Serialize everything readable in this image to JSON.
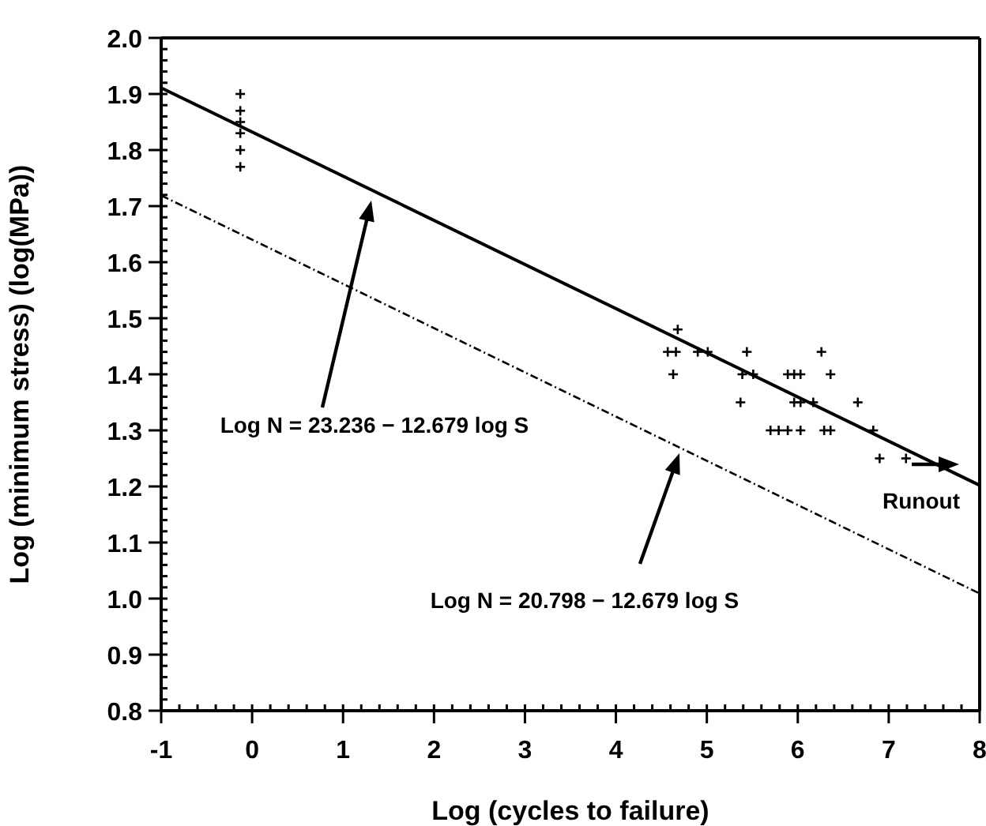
{
  "chart_data": {
    "type": "scatter",
    "xlabel": "Log (cycles to failure)",
    "ylabel": "Log (minimum stress) (log(MPa))",
    "xlim": [
      -1,
      8
    ],
    "ylim": [
      0.8,
      2.0
    ],
    "xticks": [
      -1,
      {
        "value": -0.8,
        "label": null
      },
      {
        "value": -0.6,
        "label": null
      },
      {
        "value": -0.4,
        "label": null
      },
      {
        "value": -0.2,
        "label": null
      },
      0,
      {
        "value": 0.2,
        "label": null
      },
      {
        "value": 0.4,
        "label": null
      },
      {
        "value": 0.6,
        "label": null
      },
      {
        "value": 0.8,
        "label": null
      },
      1,
      {
        "value": 1.2,
        "label": null
      },
      {
        "value": 1.4,
        "label": null
      },
      {
        "value": 1.6,
        "label": null
      },
      {
        "value": 1.8,
        "label": null
      },
      2,
      {
        "value": 2.2,
        "label": null
      },
      {
        "value": 2.4,
        "label": null
      },
      {
        "value": 2.6,
        "label": null
      },
      {
        "value": 2.8,
        "label": null
      },
      3,
      {
        "value": 3.2,
        "label": null
      },
      {
        "value": 3.4,
        "label": null
      },
      {
        "value": 3.6,
        "label": null
      },
      {
        "value": 3.8,
        "label": null
      },
      4,
      {
        "value": 4.2,
        "label": null
      },
      {
        "value": 4.4,
        "label": null
      },
      {
        "value": 4.6,
        "label": null
      },
      {
        "value": 4.8,
        "label": null
      },
      5,
      {
        "value": 5.2,
        "label": null
      },
      {
        "value": 5.4,
        "label": null
      },
      {
        "value": 5.6,
        "label": null
      },
      {
        "value": 5.8,
        "label": null
      },
      6,
      {
        "value": 6.2,
        "label": null
      },
      {
        "value": 6.4,
        "label": null
      },
      {
        "value": 6.6,
        "label": null
      },
      {
        "value": 6.8,
        "label": null
      },
      7,
      {
        "value": 7.2,
        "label": null
      },
      {
        "value": 7.4,
        "label": null
      },
      {
        "value": 7.6,
        "label": null
      },
      {
        "value": 7.8,
        "label": null
      },
      8
    ],
    "yticks": [
      {
        "value": 0.8,
        "label": "0.8"
      },
      {
        "value": 0.82,
        "label": null
      },
      {
        "value": 0.84,
        "label": null
      },
      {
        "value": 0.86,
        "label": null
      },
      {
        "value": 0.88,
        "label": null
      },
      {
        "value": 0.9,
        "label": "0.9"
      },
      {
        "value": 0.92,
        "label": null
      },
      {
        "value": 0.94,
        "label": null
      },
      {
        "value": 0.96,
        "label": null
      },
      {
        "value": 0.98,
        "label": null
      },
      {
        "value": 1.0,
        "label": "1.0"
      },
      {
        "value": 1.02,
        "label": null
      },
      {
        "value": 1.04,
        "label": null
      },
      {
        "value": 1.06,
        "label": null
      },
      {
        "value": 1.08,
        "label": null
      },
      1.1,
      {
        "value": 1.12,
        "label": null
      },
      {
        "value": 1.14,
        "label": null
      },
      {
        "value": 1.16,
        "label": null
      },
      {
        "value": 1.18,
        "label": null
      },
      1.2,
      {
        "value": 1.22,
        "label": null
      },
      {
        "value": 1.24,
        "label": null
      },
      {
        "value": 1.26,
        "label": null
      },
      {
        "value": 1.28,
        "label": null
      },
      1.3,
      {
        "value": 1.32,
        "label": null
      },
      {
        "value": 1.34,
        "label": null
      },
      {
        "value": 1.36,
        "label": null
      },
      {
        "value": 1.38,
        "label": null
      },
      1.4,
      {
        "value": 1.42,
        "label": null
      },
      {
        "value": 1.44,
        "label": null
      },
      {
        "value": 1.46,
        "label": null
      },
      {
        "value": 1.48,
        "label": null
      },
      1.5,
      {
        "value": 1.52,
        "label": null
      },
      {
        "value": 1.54,
        "label": null
      },
      {
        "value": 1.56,
        "label": null
      },
      {
        "value": 1.58,
        "label": null
      },
      1.6,
      {
        "value": 1.62,
        "label": null
      },
      {
        "value": 1.64,
        "label": null
      },
      {
        "value": 1.66,
        "label": null
      },
      {
        "value": 1.68,
        "label": null
      },
      1.7,
      {
        "value": 1.72,
        "label": null
      },
      {
        "value": 1.74,
        "label": null
      },
      {
        "value": 1.76,
        "label": null
      },
      {
        "value": 1.78,
        "label": null
      },
      1.8,
      {
        "value": 1.82,
        "label": null
      },
      {
        "value": 1.84,
        "label": null
      },
      {
        "value": 1.86,
        "label": null
      },
      {
        "value": 1.88,
        "label": null
      },
      1.9,
      {
        "value": 1.92,
        "label": null
      },
      {
        "value": 1.94,
        "label": null
      },
      {
        "value": 1.96,
        "label": null
      },
      {
        "value": 1.98,
        "label": null
      },
      {
        "value": 2.0,
        "label": "2.0"
      }
    ],
    "grid": false,
    "legend": false,
    "series": [
      {
        "marker": "cross",
        "color": "#000000",
        "x": [
          -0.13,
          -0.13,
          -0.13,
          -0.13,
          -0.13,
          -0.13,
          4.68,
          4.57,
          4.66,
          4.9,
          5.01,
          5.44,
          6.26,
          4.63,
          5.39,
          5.51,
          5.89,
          5.96,
          6.03,
          6.36,
          5.37,
          5.96,
          6.03,
          6.17,
          6.66,
          5.7,
          5.79,
          5.89,
          6.03,
          6.29,
          6.36,
          6.83,
          6.9,
          7.19
        ],
        "values": [
          1.9,
          1.87,
          1.85,
          1.83,
          1.8,
          1.77,
          1.48,
          1.44,
          1.44,
          1.44,
          1.44,
          1.44,
          1.44,
          1.4,
          1.4,
          1.4,
          1.4,
          1.4,
          1.4,
          1.4,
          1.35,
          1.35,
          1.35,
          1.35,
          1.35,
          1.3,
          1.3,
          1.3,
          1.3,
          1.3,
          1.3,
          1.3,
          1.25,
          1.25
        ]
      },
      {
        "type": "line",
        "marker": "none",
        "line_style": "solid",
        "color": "#000000",
        "x": [
          -1,
          8
        ],
        "values": [
          1.911,
          1.202
        ]
      },
      {
        "type": "line",
        "marker": "none",
        "line_style": "dashed",
        "color": "#000000",
        "x": [
          -1,
          8
        ],
        "values": [
          1.719,
          1.009
        ]
      }
    ],
    "annotations": [
      "Log N = 23.236 − 12.679 log S",
      "Log N = 20.798 − 12.679 log S",
      "Runout"
    ]
  }
}
